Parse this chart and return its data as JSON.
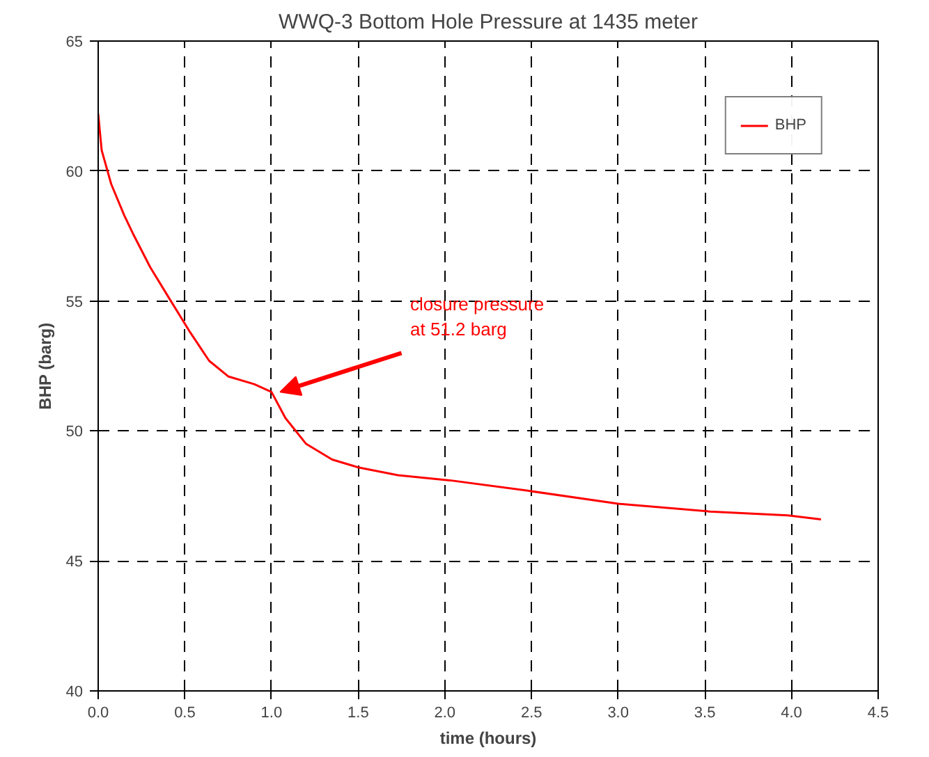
{
  "chart_data": {
    "type": "line",
    "title": "WWQ-3 Bottom Hole Pressure at 1435 meter",
    "xlabel": "time (hours)",
    "ylabel": "BHP (barg)",
    "x": [
      0,
      0.02,
      0.075,
      0.15,
      0.2,
      0.3,
      0.41,
      0.53,
      0.64,
      0.75,
      0.9,
      1.0,
      1.08,
      1.2,
      1.35,
      1.5,
      1.73,
      2.03,
      2.48,
      3.0,
      3.53,
      3.98,
      4.17
    ],
    "series": [
      {
        "name": "BHP",
        "color": "#ff0000",
        "values": [
          62.2,
          60.8,
          59.5,
          58.3,
          57.6,
          56.3,
          55.1,
          53.8,
          52.7,
          52.1,
          51.8,
          51.5,
          50.5,
          49.5,
          48.9,
          48.6,
          48.3,
          48.1,
          47.7,
          47.2,
          46.9,
          46.75,
          46.6
        ]
      }
    ],
    "xlim": [
      0,
      4.5
    ],
    "xticks": [
      {
        "value": 0,
        "label": "0.0"
      },
      0.5,
      {
        "value": 1,
        "label": "1.0"
      },
      1.5,
      {
        "value": 2,
        "label": "2.0"
      },
      2.5,
      {
        "value": 3,
        "label": "3.0"
      },
      3.5,
      {
        "value": 4,
        "label": "4.0"
      },
      4.5
    ],
    "ylim": [
      40,
      65
    ],
    "yticks": [
      40,
      45,
      50,
      55,
      60,
      65
    ],
    "annotations": [
      {
        "text": "closure pressure\nat 51.2 barg",
        "x": 1.05,
        "y": 51.5
      }
    ],
    "grid": true,
    "legend": "top right",
    "line_style": "solid",
    "marker": "none"
  }
}
